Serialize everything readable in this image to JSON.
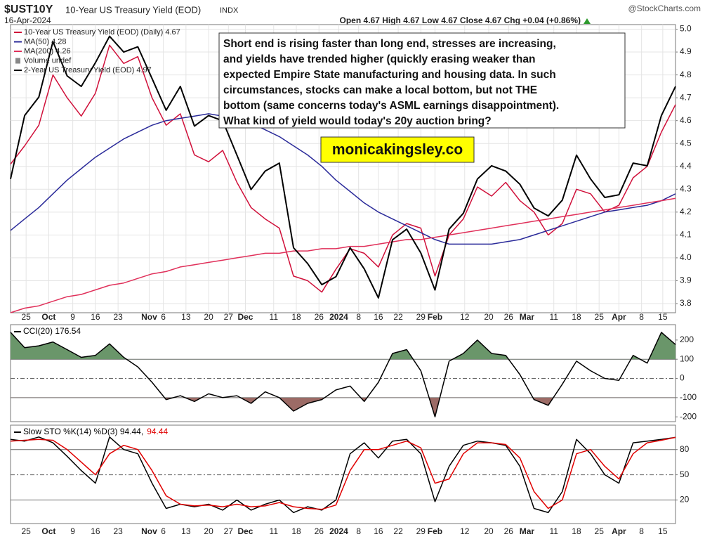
{
  "header": {
    "symbol": "$UST10Y",
    "name": "10-Year US Treasury Yield (EOD)",
    "exchange": "INDX",
    "date": "16-Apr-2024",
    "quote": "Open 4.67 High 4.67 Low 4.67 Close 4.67 Chg +0.04 (+0.86%)",
    "source": "@StockCharts.com"
  },
  "annotation": {
    "lines": [
      "Short end is rising faster than long end, stresses are increasing,",
      "and yields have trended higher (quickly erasing weaker than",
      "expected Empire State manufacturing and housing data. In such",
      "circumstances, stocks can make a local bottom, but not THE",
      "bottom (same concerns today's ASML earnings disappointment).",
      "What kind of yield would today's 20y auction bring?"
    ],
    "watermark": "monicakingsley.co"
  },
  "chart_data": [
    {
      "type": "line",
      "xlim": [
        0,
        47
      ],
      "xticks": [
        {
          "value": 1.1,
          "label": "25"
        },
        {
          "value": 2.7,
          "label": "Oct"
        },
        {
          "value": 4.4,
          "label": "9"
        },
        {
          "value": 6,
          "label": "16"
        },
        {
          "value": 7.6,
          "label": "23"
        },
        {
          "value": 9.8,
          "label": "Nov"
        },
        {
          "value": 10.8,
          "label": "6"
        },
        {
          "value": 12.4,
          "label": "13"
        },
        {
          "value": 14,
          "label": "20"
        },
        {
          "value": 15.4,
          "label": "27"
        },
        {
          "value": 16.6,
          "label": "Dec"
        },
        {
          "value": 18.6,
          "label": "11"
        },
        {
          "value": 20.2,
          "label": "18"
        },
        {
          "value": 21.8,
          "label": "26"
        },
        {
          "value": 23.2,
          "label": "2024"
        },
        {
          "value": 24.6,
          "label": "8"
        },
        {
          "value": 26,
          "label": "16"
        },
        {
          "value": 27.4,
          "label": "22"
        },
        {
          "value": 29,
          "label": "29"
        },
        {
          "value": 30,
          "label": "Feb"
        },
        {
          "value": 32.1,
          "label": "12"
        },
        {
          "value": 33.8,
          "label": "20"
        },
        {
          "value": 35.2,
          "label": "26"
        },
        {
          "value": 36.5,
          "label": "Mar"
        },
        {
          "value": 38.4,
          "label": "11"
        },
        {
          "value": 40,
          "label": "18"
        },
        {
          "value": 41.6,
          "label": "25"
        },
        {
          "value": 43,
          "label": "Apr"
        },
        {
          "value": 44.6,
          "label": "8"
        },
        {
          "value": 46.1,
          "label": "15"
        }
      ],
      "ylim": [
        3.76,
        5.02
      ],
      "yticks": [
        3.8,
        3.9,
        {
          "value": 4,
          "label": "4.0"
        },
        4.1,
        4.2,
        4.3,
        4.4,
        4.5,
        4.6,
        4.7,
        4.8,
        4.9,
        {
          "value": 5,
          "label": "5.0"
        }
      ],
      "y2lim": [
        4.114,
        5.204
      ],
      "grid": true,
      "legend_notes": [
        "Volume undef"
      ],
      "series": [
        {
          "name": "10-Year US Treasury Yield (EOD) (Daily) 4.67",
          "color": "#d0103a",
          "values": [
            4.41,
            4.49,
            4.58,
            4.8,
            4.7,
            4.62,
            4.72,
            4.93,
            4.85,
            4.88,
            4.7,
            4.58,
            4.63,
            4.45,
            4.42,
            4.47,
            4.33,
            4.22,
            4.17,
            4.13,
            3.92,
            3.9,
            3.85,
            3.95,
            4.04,
            4.02,
            3.96,
            4.1,
            4.15,
            4.13,
            3.92,
            4.1,
            4.17,
            4.31,
            4.27,
            4.33,
            4.25,
            4.2,
            4.1,
            4.15,
            4.3,
            4.28,
            4.2,
            4.23,
            4.35,
            4.4,
            4.55,
            4.67
          ]
        },
        {
          "name": "MA(50) 4.28",
          "color": "#2b2b9a",
          "values": [
            4.12,
            4.17,
            4.22,
            4.28,
            4.34,
            4.39,
            4.44,
            4.48,
            4.52,
            4.55,
            4.58,
            4.6,
            4.61,
            4.62,
            4.63,
            4.62,
            4.61,
            4.59,
            4.56,
            4.53,
            4.49,
            4.45,
            4.4,
            4.34,
            4.29,
            4.24,
            4.2,
            4.17,
            4.14,
            4.11,
            4.08,
            4.06,
            4.06,
            4.06,
            4.06,
            4.07,
            4.08,
            4.1,
            4.12,
            4.14,
            4.16,
            4.18,
            4.2,
            4.21,
            4.22,
            4.23,
            4.25,
            4.28
          ]
        },
        {
          "name": "MA(200) 4.26",
          "color": "#e0305a",
          "values": [
            3.76,
            3.78,
            3.79,
            3.81,
            3.83,
            3.84,
            3.86,
            3.88,
            3.89,
            3.91,
            3.93,
            3.94,
            3.96,
            3.97,
            3.98,
            3.99,
            4,
            4.01,
            4.02,
            4.02,
            4.03,
            4.03,
            4.04,
            4.04,
            4.05,
            4.05,
            4.06,
            4.07,
            4.08,
            4.08,
            4.09,
            4.1,
            4.11,
            4.12,
            4.13,
            4.14,
            4.15,
            4.16,
            4.17,
            4.18,
            4.19,
            4.2,
            4.21,
            4.22,
            4.23,
            4.24,
            4.25,
            4.26
          ]
        },
        {
          "name": "2-Year US Treasury Yield (EOD) 4.97",
          "color": "#000000",
          "axis": "y2",
          "values": [
            4.62,
            4.86,
            4.93,
            5.14,
            5.01,
            4.97,
            5.06,
            5.16,
            5.1,
            5.12,
            5,
            4.88,
            4.97,
            4.82,
            4.86,
            4.84,
            4.71,
            4.58,
            4.65,
            4.68,
            4.36,
            4.3,
            4.22,
            4.25,
            4.36,
            4.28,
            4.17,
            4.39,
            4.43,
            4.34,
            4.2,
            4.43,
            4.49,
            4.62,
            4.67,
            4.65,
            4.6,
            4.51,
            4.48,
            4.54,
            4.71,
            4.62,
            4.55,
            4.56,
            4.68,
            4.67,
            4.86,
            4.97
          ]
        }
      ]
    },
    {
      "type": "line",
      "xlim": [
        0,
        47
      ],
      "ylim": [
        -225,
        280
      ],
      "yticks": [
        -200,
        -100,
        0,
        100,
        200
      ],
      "ref_lines": [
        {
          "value": 100,
          "dashed": false
        },
        {
          "value": 0,
          "dashed": true
        },
        {
          "value": -100,
          "dashed": false
        }
      ],
      "upper_band": 100,
      "lower_band": -100,
      "upper_fill": "#6a966a",
      "lower_fill": "#9c6b66",
      "series": [
        {
          "name": "CCI(20) 176.54",
          "color": "#000000",
          "values": [
            240,
            160,
            170,
            190,
            150,
            110,
            120,
            180,
            110,
            60,
            -20,
            -110,
            -90,
            -120,
            -80,
            -100,
            -90,
            -130,
            -70,
            -100,
            -170,
            -130,
            -110,
            -60,
            -40,
            -120,
            -20,
            130,
            150,
            40,
            -200,
            90,
            130,
            200,
            130,
            120,
            20,
            -110,
            -140,
            -30,
            90,
            40,
            0,
            -10,
            120,
            80,
            240,
            176.54
          ]
        }
      ]
    },
    {
      "type": "line",
      "xlim": [
        0,
        47
      ],
      "xticks": [
        {
          "value": 1.1,
          "label": "25"
        },
        {
          "value": 2.7,
          "label": "Oct"
        },
        {
          "value": 4.4,
          "label": "9"
        },
        {
          "value": 6,
          "label": "16"
        },
        {
          "value": 7.6,
          "label": "23"
        },
        {
          "value": 9.8,
          "label": "Nov"
        },
        {
          "value": 10.8,
          "label": "6"
        },
        {
          "value": 12.4,
          "label": "13"
        },
        {
          "value": 14,
          "label": "20"
        },
        {
          "value": 15.4,
          "label": "27"
        },
        {
          "value": 16.6,
          "label": "Dec"
        },
        {
          "value": 18.6,
          "label": "11"
        },
        {
          "value": 20.2,
          "label": "18"
        },
        {
          "value": 21.8,
          "label": "26"
        },
        {
          "value": 23.2,
          "label": "2024"
        },
        {
          "value": 24.6,
          "label": "8"
        },
        {
          "value": 26,
          "label": "16"
        },
        {
          "value": 27.4,
          "label": "22"
        },
        {
          "value": 29,
          "label": "29"
        },
        {
          "value": 30,
          "label": "Feb"
        },
        {
          "value": 32.1,
          "label": "12"
        },
        {
          "value": 33.8,
          "label": "20"
        },
        {
          "value": 35.2,
          "label": "26"
        },
        {
          "value": 36.5,
          "label": "Mar"
        },
        {
          "value": 38.4,
          "label": "11"
        },
        {
          "value": 40,
          "label": "18"
        },
        {
          "value": 41.6,
          "label": "25"
        },
        {
          "value": 43,
          "label": "Apr"
        },
        {
          "value": 44.6,
          "label": "8"
        },
        {
          "value": 46.1,
          "label": "15"
        }
      ],
      "ylim": [
        -8,
        109
      ],
      "yticks": [
        20,
        50,
        80
      ],
      "ref_lines": [
        {
          "value": 80,
          "dashed": false
        },
        {
          "value": 50,
          "dashed": true
        },
        {
          "value": 20,
          "dashed": false
        }
      ],
      "series": [
        {
          "name": "Slow STO %K(14) %D(3) 94.44,",
          "color": "#000000",
          "values": [
            92,
            90,
            95,
            88,
            72,
            55,
            40,
            95,
            80,
            75,
            40,
            10,
            15,
            12,
            15,
            8,
            20,
            8,
            15,
            20,
            5,
            12,
            8,
            20,
            75,
            88,
            70,
            90,
            92,
            75,
            18,
            60,
            85,
            90,
            88,
            85,
            60,
            10,
            5,
            30,
            92,
            75,
            50,
            40,
            88,
            90,
            92,
            94.44
          ]
        },
        {
          "name": "94.44",
          "color": "#e00000",
          "values": [
            90,
            91,
            92,
            91,
            80,
            65,
            50,
            75,
            85,
            80,
            55,
            25,
            15,
            13,
            14,
            12,
            15,
            12,
            13,
            17,
            12,
            10,
            9,
            14,
            55,
            80,
            80,
            85,
            90,
            82,
            40,
            45,
            75,
            88,
            88,
            86,
            70,
            30,
            10,
            20,
            75,
            80,
            60,
            45,
            75,
            88,
            91,
            94.44
          ]
        }
      ]
    }
  ]
}
